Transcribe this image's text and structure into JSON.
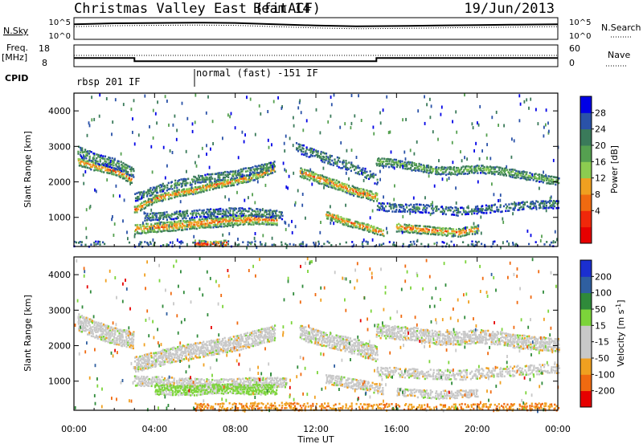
{
  "header": {
    "station": "Christmas Valley East (fitACF)",
    "beam": "Beam 14",
    "date": "19/Jun/2013"
  },
  "strip_labels": {
    "nsky": "N.Sky",
    "nsky_ticks": [
      "10^5",
      "10^0"
    ],
    "nsearch": "N.Search",
    "nsearch_ticks": [
      "10^5",
      "10^0"
    ],
    "freq_line1": "Freq.",
    "freq_line2": "[MHz]",
    "freq_ticks": [
      "18",
      "8"
    ],
    "nave": "Nave",
    "nave_ticks": [
      "60",
      "0"
    ],
    "cpid": "CPID",
    "cpid_mode1": "rbsp 201 IF",
    "cpid_mode2": "normal (fast) -151 IF"
  },
  "power_panel": {
    "ylabel": "Slant Range [km]",
    "yticks": [
      "4000",
      "3000",
      "2000",
      "1000"
    ],
    "colorbar_label": "Power [dB]",
    "colorbar_ticks": [
      "28",
      "24",
      "20",
      "16",
      "12",
      "8",
      "4"
    ],
    "colors": [
      "#0000e6",
      "#2a52a8",
      "#3a7a5a",
      "#55a050",
      "#8ccc50",
      "#f0a020",
      "#f06a10",
      "#f0280a",
      "#e60000"
    ]
  },
  "velocity_panel": {
    "ylabel": "Slant Range [km]",
    "yticks": [
      "4000",
      "3000",
      "2000",
      "1000"
    ],
    "colorbar_label": "Velocity [m s",
    "colorbar_label_sup": "-1",
    "colorbar_label_end": "]",
    "colorbar_ticks": [
      "200",
      "100",
      "50",
      "15",
      "-15",
      "-50",
      "-100",
      "-200"
    ],
    "colors": [
      "#1b2fd0",
      "#2f5fa0",
      "#2f8a3a",
      "#7cd43a",
      "#c8c8c8",
      "#c8c8c8",
      "#f0a020",
      "#f06a10",
      "#e60000"
    ]
  },
  "time_axis": {
    "label": "Time UT",
    "ticks": [
      "00:00",
      "04:00",
      "08:00",
      "12:00",
      "16:00",
      "20:00",
      "00:00"
    ]
  },
  "chart_data": [
    {
      "type": "line",
      "title": "N.Sky / N.Search",
      "yscale": "log",
      "ylim": [
        1,
        100000
      ],
      "x_unit": "hours UT",
      "series": [
        {
          "x": [
            0,
            2,
            4,
            6,
            8,
            10,
            12,
            14,
            16,
            18,
            20,
            22,
            24
          ],
          "values": [
            3000,
            5000,
            6000,
            7000,
            6000,
            3000,
            1500,
            1000,
            1200,
            1500,
            2000,
            2500,
            3000
          ]
        }
      ]
    },
    {
      "type": "line",
      "title": "Freq. [MHz] / Nave",
      "ylim": [
        8,
        18
      ],
      "x_unit": "hours UT",
      "series": [
        {
          "x": [
            0,
            3,
            3,
            15,
            15,
            24
          ],
          "values": [
            12,
            12,
            10.5,
            10.5,
            12,
            12
          ]
        }
      ]
    },
    {
      "type": "heatmap",
      "title": "Power [dB]",
      "xlabel": "Time UT",
      "ylabel": "Slant Range [km]",
      "xlim": [
        0,
        24
      ],
      "ylim": [
        180,
        4500
      ],
      "zlim": [
        0,
        30
      ],
      "x_unit": "hours UT",
      "bands": [
        {
          "x": [
            0.2,
            0.8,
            1.5,
            2.2,
            2.8
          ],
          "y": [
            2600,
            2500,
            2400,
            2300,
            2100
          ],
          "width_km": 250,
          "power_db": 22,
          "density": 0.95
        },
        {
          "x": [
            0.2,
            1.0,
            2.0,
            2.9
          ],
          "y": [
            2900,
            2700,
            2550,
            2300
          ],
          "width_km": 300,
          "power_db": 12,
          "density": 0.8
        },
        {
          "x": [
            3.0,
            4.0,
            5.0,
            6.0,
            7.0,
            8.0,
            9.0,
            9.9
          ],
          "y": [
            1250,
            1550,
            1700,
            1800,
            1950,
            2050,
            2200,
            2400
          ],
          "width_km": 220,
          "power_db": 22,
          "density": 0.95
        },
        {
          "x": [
            3.0,
            4.5,
            6.0,
            8.0,
            9.9
          ],
          "y": [
            1600,
            1900,
            2100,
            2250,
            2500
          ],
          "width_km": 250,
          "power_db": 11,
          "density": 0.85
        },
        {
          "x": [
            3.0,
            4.0,
            5.0,
            6.0,
            7.0,
            8.0,
            9.0,
            10.0
          ],
          "y": [
            700,
            750,
            800,
            850,
            900,
            950,
            980,
            950
          ],
          "width_km": 300,
          "power_db": 22,
          "density": 0.95
        },
        {
          "x": [
            3.5,
            5.0,
            6.5,
            8.0,
            9.5,
            10.3
          ],
          "y": [
            1050,
            1100,
            1150,
            1200,
            1150,
            1100
          ],
          "width_km": 250,
          "power_db": 10,
          "density": 0.8
        },
        {
          "x": [
            6.0,
            6.8,
            7.5
          ],
          "y": [
            300,
            250,
            300
          ],
          "width_km": 220,
          "power_db": 27,
          "density": 0.9
        },
        {
          "x": [
            11.2,
            12.0,
            13.0,
            14.0,
            15.0
          ],
          "y": [
            2300,
            2150,
            1950,
            1750,
            1600
          ],
          "width_km": 280,
          "power_db": 22,
          "density": 0.95
        },
        {
          "x": [
            11.0,
            12.5,
            14.0,
            15.0
          ],
          "y": [
            3000,
            2700,
            2400,
            2100
          ],
          "width_km": 300,
          "power_db": 10,
          "density": 0.7
        },
        {
          "x": [
            12.5,
            13.5,
            14.5,
            15.3
          ],
          "y": [
            1100,
            900,
            750,
            600
          ],
          "width_km": 220,
          "power_db": 22,
          "density": 0.95
        },
        {
          "x": [
            15.0,
            16.0,
            17.0,
            18.0,
            19.0,
            20.0,
            21.0,
            22.0,
            23.0,
            24.0
          ],
          "y": [
            2600,
            2550,
            2450,
            2350,
            2350,
            2400,
            2350,
            2250,
            2150,
            2050
          ],
          "width_km": 250,
          "power_db": 14,
          "density": 0.9
        },
        {
          "x": [
            15.0,
            16.0,
            17.0,
            18.0,
            19.0,
            20.0,
            21.0,
            22.0,
            23.0,
            24.0
          ],
          "y": [
            1350,
            1300,
            1300,
            1250,
            1200,
            1250,
            1300,
            1350,
            1400,
            1400
          ],
          "width_km": 250,
          "power_db": 9,
          "density": 0.7
        },
        {
          "x": [
            16.0,
            17.0,
            18.0,
            19.0,
            20.0
          ],
          "y": [
            750,
            700,
            650,
            600,
            700
          ],
          "width_km": 250,
          "power_db": 22,
          "density": 0.9
        },
        {
          "x": [
            0,
            24
          ],
          "y": [
            280,
            280
          ],
          "width_km": 200,
          "power_db": 8,
          "density": 0.25
        }
      ]
    },
    {
      "type": "heatmap",
      "title": "Velocity [m s-1]",
      "xlabel": "Time UT",
      "ylabel": "Slant Range [km]",
      "xlim": [
        0,
        24
      ],
      "ylim": [
        180,
        4500
      ],
      "zlim": [
        -200,
        200
      ],
      "x_unit": "hours UT",
      "bands": [
        {
          "x": [
            0.2,
            1.0,
            2.0,
            2.9
          ],
          "y": [
            2700,
            2500,
            2300,
            2200
          ],
          "width_km": 500,
          "velocity": 0,
          "density": 0.9
        },
        {
          "x": [
            3.0,
            4.0,
            5.0,
            6.0,
            7.0,
            8.0,
            9.0,
            9.9
          ],
          "y": [
            1500,
            1650,
            1800,
            1900,
            2000,
            2100,
            2250,
            2400
          ],
          "width_km": 450,
          "velocity": 0,
          "density": 0.9
        },
        {
          "x": [
            3.0,
            5.0,
            7.0,
            9.0,
            10.5
          ],
          "y": [
            1050,
            1000,
            950,
            1000,
            1000
          ],
          "width_km": 300,
          "velocity": 0,
          "density": 0.85
        },
        {
          "x": [
            4.0,
            5.0,
            6.0,
            7.0,
            8.0,
            9.0,
            10.0
          ],
          "y": [
            800,
            780,
            780,
            820,
            820,
            800,
            800
          ],
          "width_km": 300,
          "velocity": 25,
          "density": 0.95
        },
        {
          "x": [
            11.2,
            12.5,
            14.0,
            15.0
          ],
          "y": [
            2400,
            2200,
            2000,
            1800
          ],
          "width_km": 450,
          "velocity": 0,
          "density": 0.85
        },
        {
          "x": [
            12.5,
            13.5,
            14.5,
            15.3
          ],
          "y": [
            1100,
            1000,
            900,
            800
          ],
          "width_km": 300,
          "velocity": 0,
          "density": 0.8
        },
        {
          "x": [
            15.0,
            16.0,
            17.0,
            18.0,
            19.0,
            20.0,
            21.0,
            22.0,
            23.0,
            24.0
          ],
          "y": [
            2450,
            2400,
            2350,
            2250,
            2250,
            2300,
            2250,
            2150,
            2100,
            2050
          ],
          "width_km": 400,
          "velocity": 0,
          "density": 0.85
        },
        {
          "x": [
            15.0,
            17.0,
            19.0,
            21.0,
            24.0
          ],
          "y": [
            1300,
            1250,
            1200,
            1300,
            1400
          ],
          "width_km": 300,
          "velocity": 0,
          "density": 0.6
        },
        {
          "x": [
            16.0,
            18.0,
            20.0
          ],
          "y": [
            750,
            650,
            700
          ],
          "width_km": 250,
          "velocity": 0,
          "density": 0.8
        },
        {
          "x": [
            6.0,
            10.0,
            14.0,
            18.0,
            22.0,
            24.0
          ],
          "y": [
            300,
            320,
            300,
            280,
            300,
            300
          ],
          "width_km": 250,
          "velocity": -45,
          "density": 0.55
        }
      ]
    }
  ]
}
